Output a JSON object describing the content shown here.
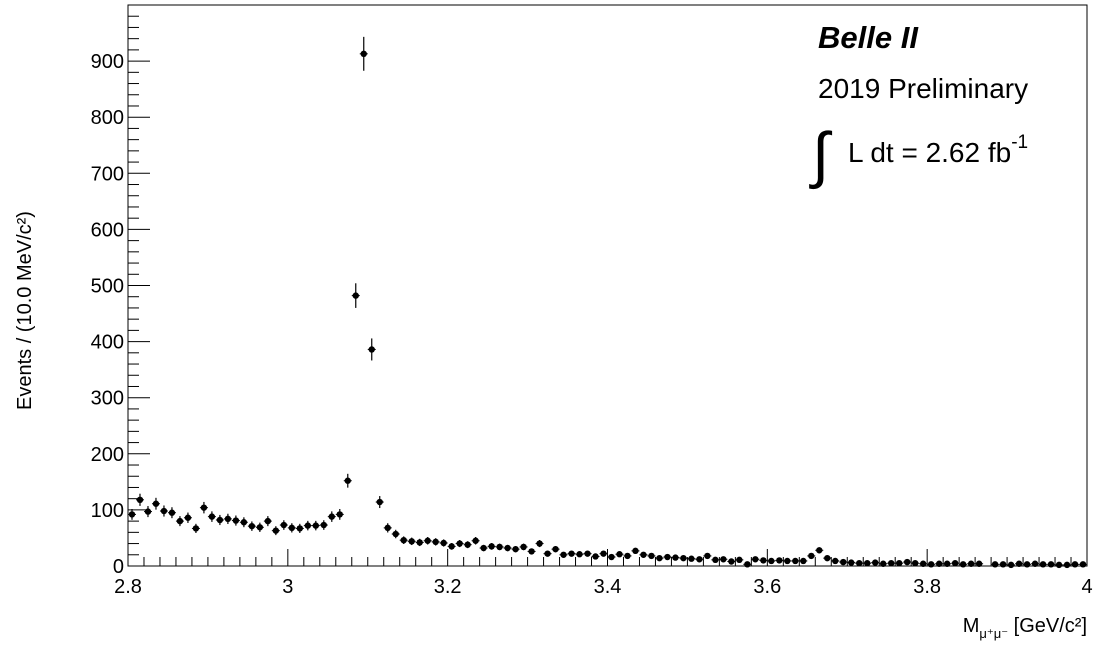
{
  "chart_data": {
    "type": "scatter",
    "style": "histogram-points-with-error-bars",
    "title": "",
    "xlabel": {
      "main": "M",
      "sub": "μ⁺μ⁻",
      "unit": " [GeV/c²]"
    },
    "ylabel": "Events / (10.0 MeV/c²)",
    "xlim": [
      2.8,
      4.0
    ],
    "ylim": [
      0,
      1000
    ],
    "x_ticks": [
      2.8,
      3.0,
      3.2,
      3.4,
      3.6,
      3.8,
      4.0
    ],
    "x_tick_labels": [
      "2.8",
      "3",
      "3.2",
      "3.4",
      "3.6",
      "3.8",
      "4"
    ],
    "y_ticks": [
      0,
      100,
      200,
      300,
      400,
      500,
      600,
      700,
      800,
      900
    ],
    "y_tick_labels": [
      "0",
      "100",
      "200",
      "300",
      "400",
      "500",
      "600",
      "700",
      "800",
      "900"
    ],
    "bin_width": 0.01,
    "x_first_bin_center": 2.805,
    "values": [
      92,
      118,
      97,
      111,
      98,
      95,
      80,
      86,
      67,
      104,
      88,
      82,
      84,
      81,
      78,
      71,
      69,
      80,
      63,
      73,
      68,
      67,
      72,
      72,
      73,
      88,
      92,
      152,
      482,
      913,
      386,
      114,
      68,
      57,
      46,
      44,
      42,
      45,
      43,
      41,
      35,
      40,
      38,
      45,
      32,
      35,
      34,
      32,
      30,
      34,
      26,
      40,
      22,
      30,
      20,
      22,
      21,
      22,
      17,
      22,
      16,
      21,
      18,
      27,
      20,
      18,
      14,
      16,
      15,
      14,
      13,
      12,
      18,
      11,
      12,
      8,
      11,
      3,
      12,
      10,
      9,
      10,
      9,
      9,
      9,
      18,
      28,
      14,
      9,
      7,
      6,
      5,
      5,
      6,
      4,
      5,
      5,
      7,
      5,
      4,
      3,
      4,
      4,
      5,
      3,
      4,
      4,
      null,
      3,
      3,
      2,
      4,
      3,
      4,
      3,
      3,
      2,
      2,
      3,
      3
    ],
    "annotations": {
      "experiment": "Belle II",
      "status": "2019 Preliminary",
      "lumi_integral": "∫",
      "lumi_text": "L dt = 2.62 fb",
      "lumi_exp": "-1"
    }
  }
}
